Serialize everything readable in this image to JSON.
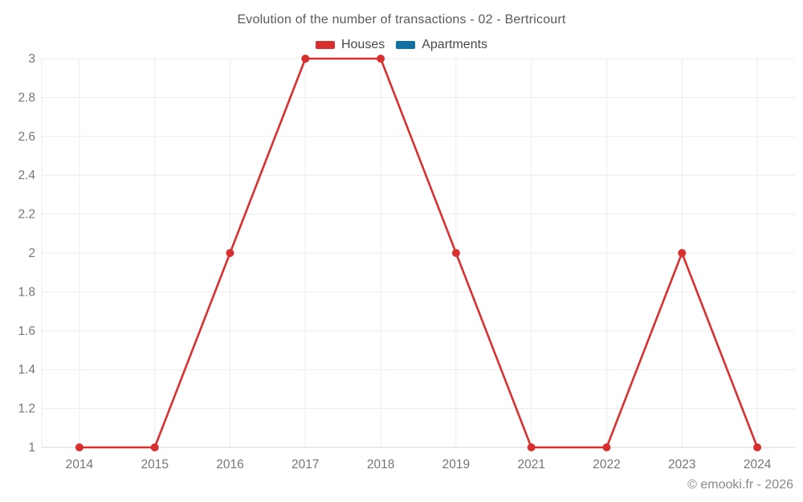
{
  "page": {
    "background": "#ffffff"
  },
  "chart_data": {
    "type": "line",
    "title": "Evolution of the number of transactions - 02 - Bertricourt",
    "categories": [
      "2014",
      "2015",
      "2016",
      "2017",
      "2018",
      "2019",
      "2021",
      "2022",
      "2023",
      "2024"
    ],
    "series": [
      {
        "name": "Houses",
        "color": "#d7302f",
        "values": [
          1,
          1,
          2,
          3,
          3,
          2,
          1,
          1,
          2,
          1
        ]
      },
      {
        "name": "Apartments",
        "color": "#1170a3",
        "values": []
      }
    ],
    "xlabel": "",
    "ylabel": "",
    "ylim": [
      1,
      3
    ],
    "yticks": [
      1,
      1.2,
      1.4,
      1.6,
      1.8,
      2,
      2.2,
      2.4,
      2.6,
      2.8,
      3
    ],
    "ytick_labels": [
      "1",
      "1.2",
      "1.4",
      "1.6",
      "1.8",
      "2",
      "2.2",
      "2.4",
      "2.6",
      "2.8",
      "3"
    ],
    "grid": true,
    "legend_position": "top",
    "marker": "circle"
  },
  "colors": {
    "grid_line": "#ececec",
    "axis_line": "#d6d6d6",
    "tick_text": "#757575",
    "title_text": "#595959",
    "legend_text": "#484848",
    "footer_text": "#88898b"
  },
  "footer": {
    "credit": "© emooki.fr - 2026"
  }
}
